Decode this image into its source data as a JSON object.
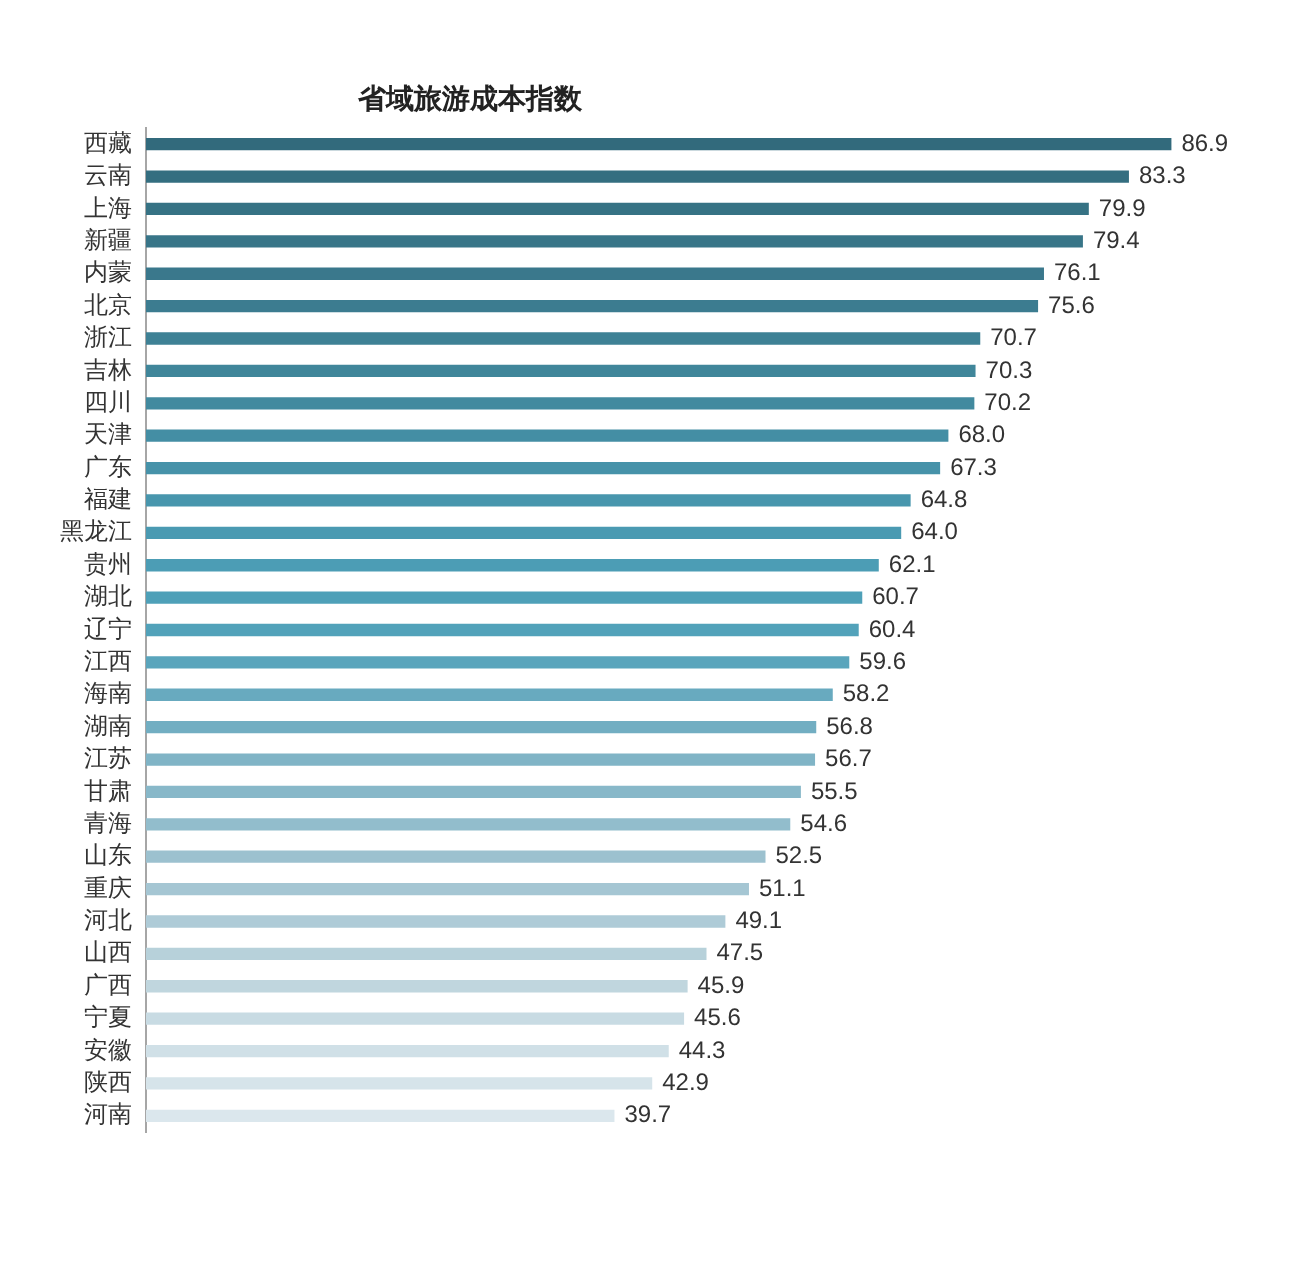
{
  "chart_data": {
    "type": "bar",
    "orientation": "horizontal",
    "title": "省域旅游成本指数",
    "categories": [
      "西藏",
      "云南",
      "上海",
      "新疆",
      "内蒙",
      "北京",
      "浙江",
      "吉林",
      "四川",
      "天津",
      "广东",
      "福建",
      "黑龙江",
      "贵州",
      "湖北",
      "辽宁",
      "江西",
      "海南",
      "湖南",
      "江苏",
      "甘肃",
      "青海",
      "山东",
      "重庆",
      "河北",
      "山西",
      "广西",
      "宁夏",
      "安徽",
      "陕西",
      "河南"
    ],
    "values": [
      86.9,
      83.3,
      79.9,
      79.4,
      76.1,
      75.6,
      70.7,
      70.3,
      70.2,
      68.0,
      67.3,
      64.8,
      64.0,
      62.1,
      60.7,
      60.4,
      59.6,
      58.2,
      56.8,
      56.7,
      55.5,
      54.6,
      52.5,
      51.1,
      49.1,
      47.5,
      45.9,
      45.6,
      44.3,
      42.9,
      39.7
    ],
    "value_labels": [
      "86.9",
      "83.3",
      "79.9",
      "79.4",
      "76.1",
      "75.6",
      "70.7",
      "70.3",
      "70.2",
      "68.0",
      "67.3",
      "64.8",
      "64.0",
      "62.1",
      "60.7",
      "60.4",
      "59.6",
      "58.2",
      "56.8",
      "56.7",
      "55.5",
      "54.6",
      "52.5",
      "51.1",
      "49.1",
      "47.5",
      "45.9",
      "45.6",
      "44.3",
      "42.9",
      "39.7"
    ],
    "colors": [
      "#326a7c",
      "#346e80",
      "#367284",
      "#387588",
      "#3a788c",
      "#3c7c90",
      "#3e8195",
      "#40869a",
      "#428a9f",
      "#448ea4",
      "#4692a9",
      "#4896ad",
      "#4a9ab2",
      "#4c9db5",
      "#4ea0b8",
      "#52a2ba",
      "#5aa5bc",
      "#68aabf",
      "#72aec2",
      "#80b4c6",
      "#88b8c9",
      "#92bdcc",
      "#9cc1cf",
      "#a5c6d3",
      "#aecbd7",
      "#b7d1da",
      "#c0d6de",
      "#c8dbe3",
      "#d0e0e7",
      "#d6e4ea",
      "#dbe7ed"
    ]
  }
}
